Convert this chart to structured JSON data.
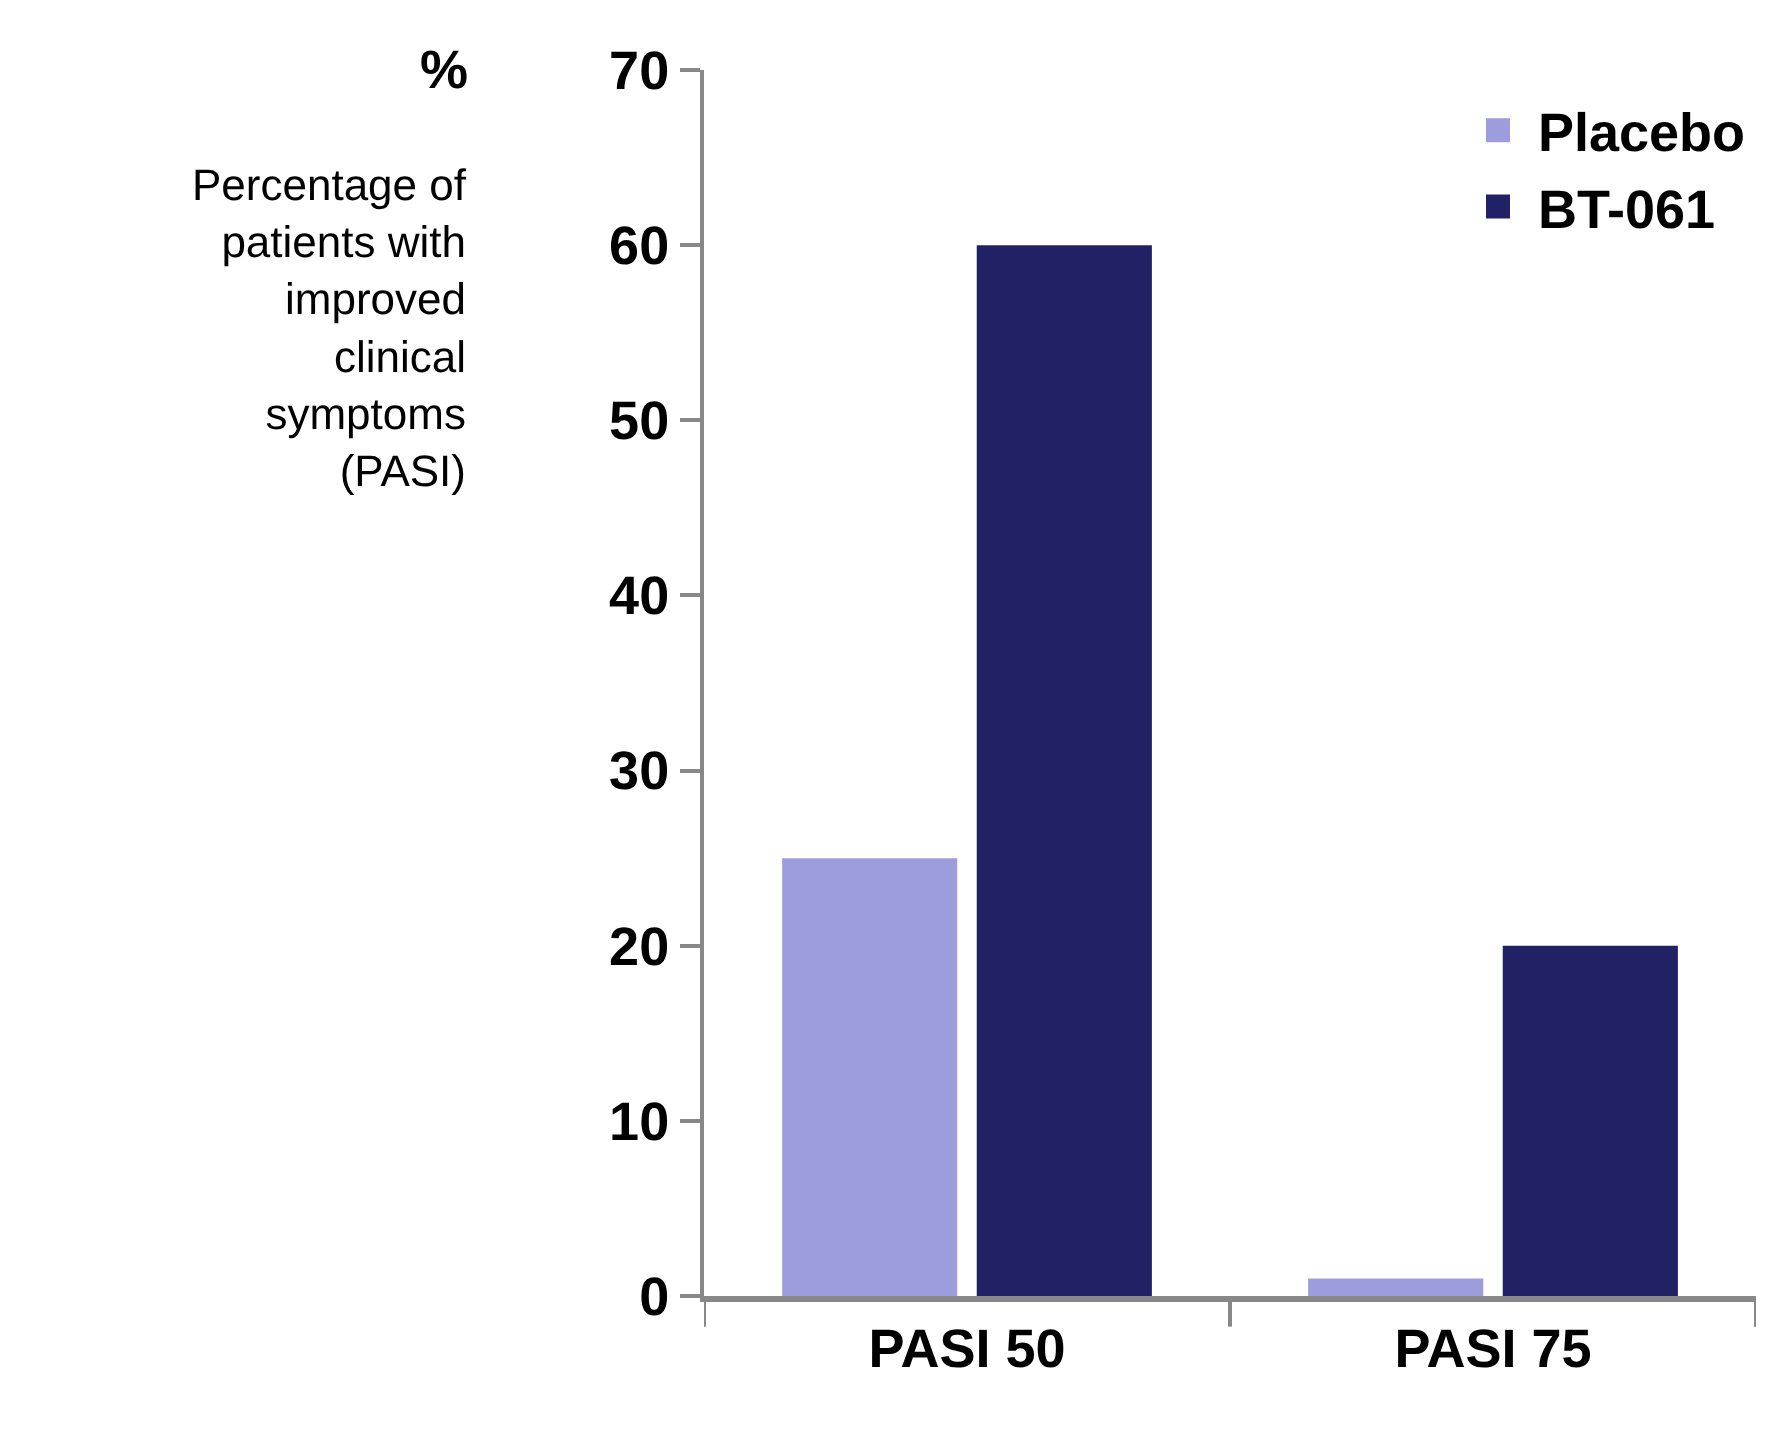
{
  "chart_data": {
    "type": "bar",
    "ylabel": "%",
    "annotations": [
      "Percentage of\npatients with\nimproved\nclinical\nsymptoms\n(PASI)"
    ],
    "categories": [
      "PASI 50",
      "PASI 75"
    ],
    "series": [
      {
        "name": "Placebo",
        "color": "#9d9ddd",
        "values": [
          25,
          1
        ]
      },
      {
        "name": "BT-061",
        "color": "#212166",
        "values": [
          60,
          20
        ]
      }
    ],
    "ylim": [
      0,
      70
    ],
    "yticks": [
      0,
      10,
      20,
      30,
      40,
      50,
      60,
      70
    ],
    "legend": "top right"
  }
}
